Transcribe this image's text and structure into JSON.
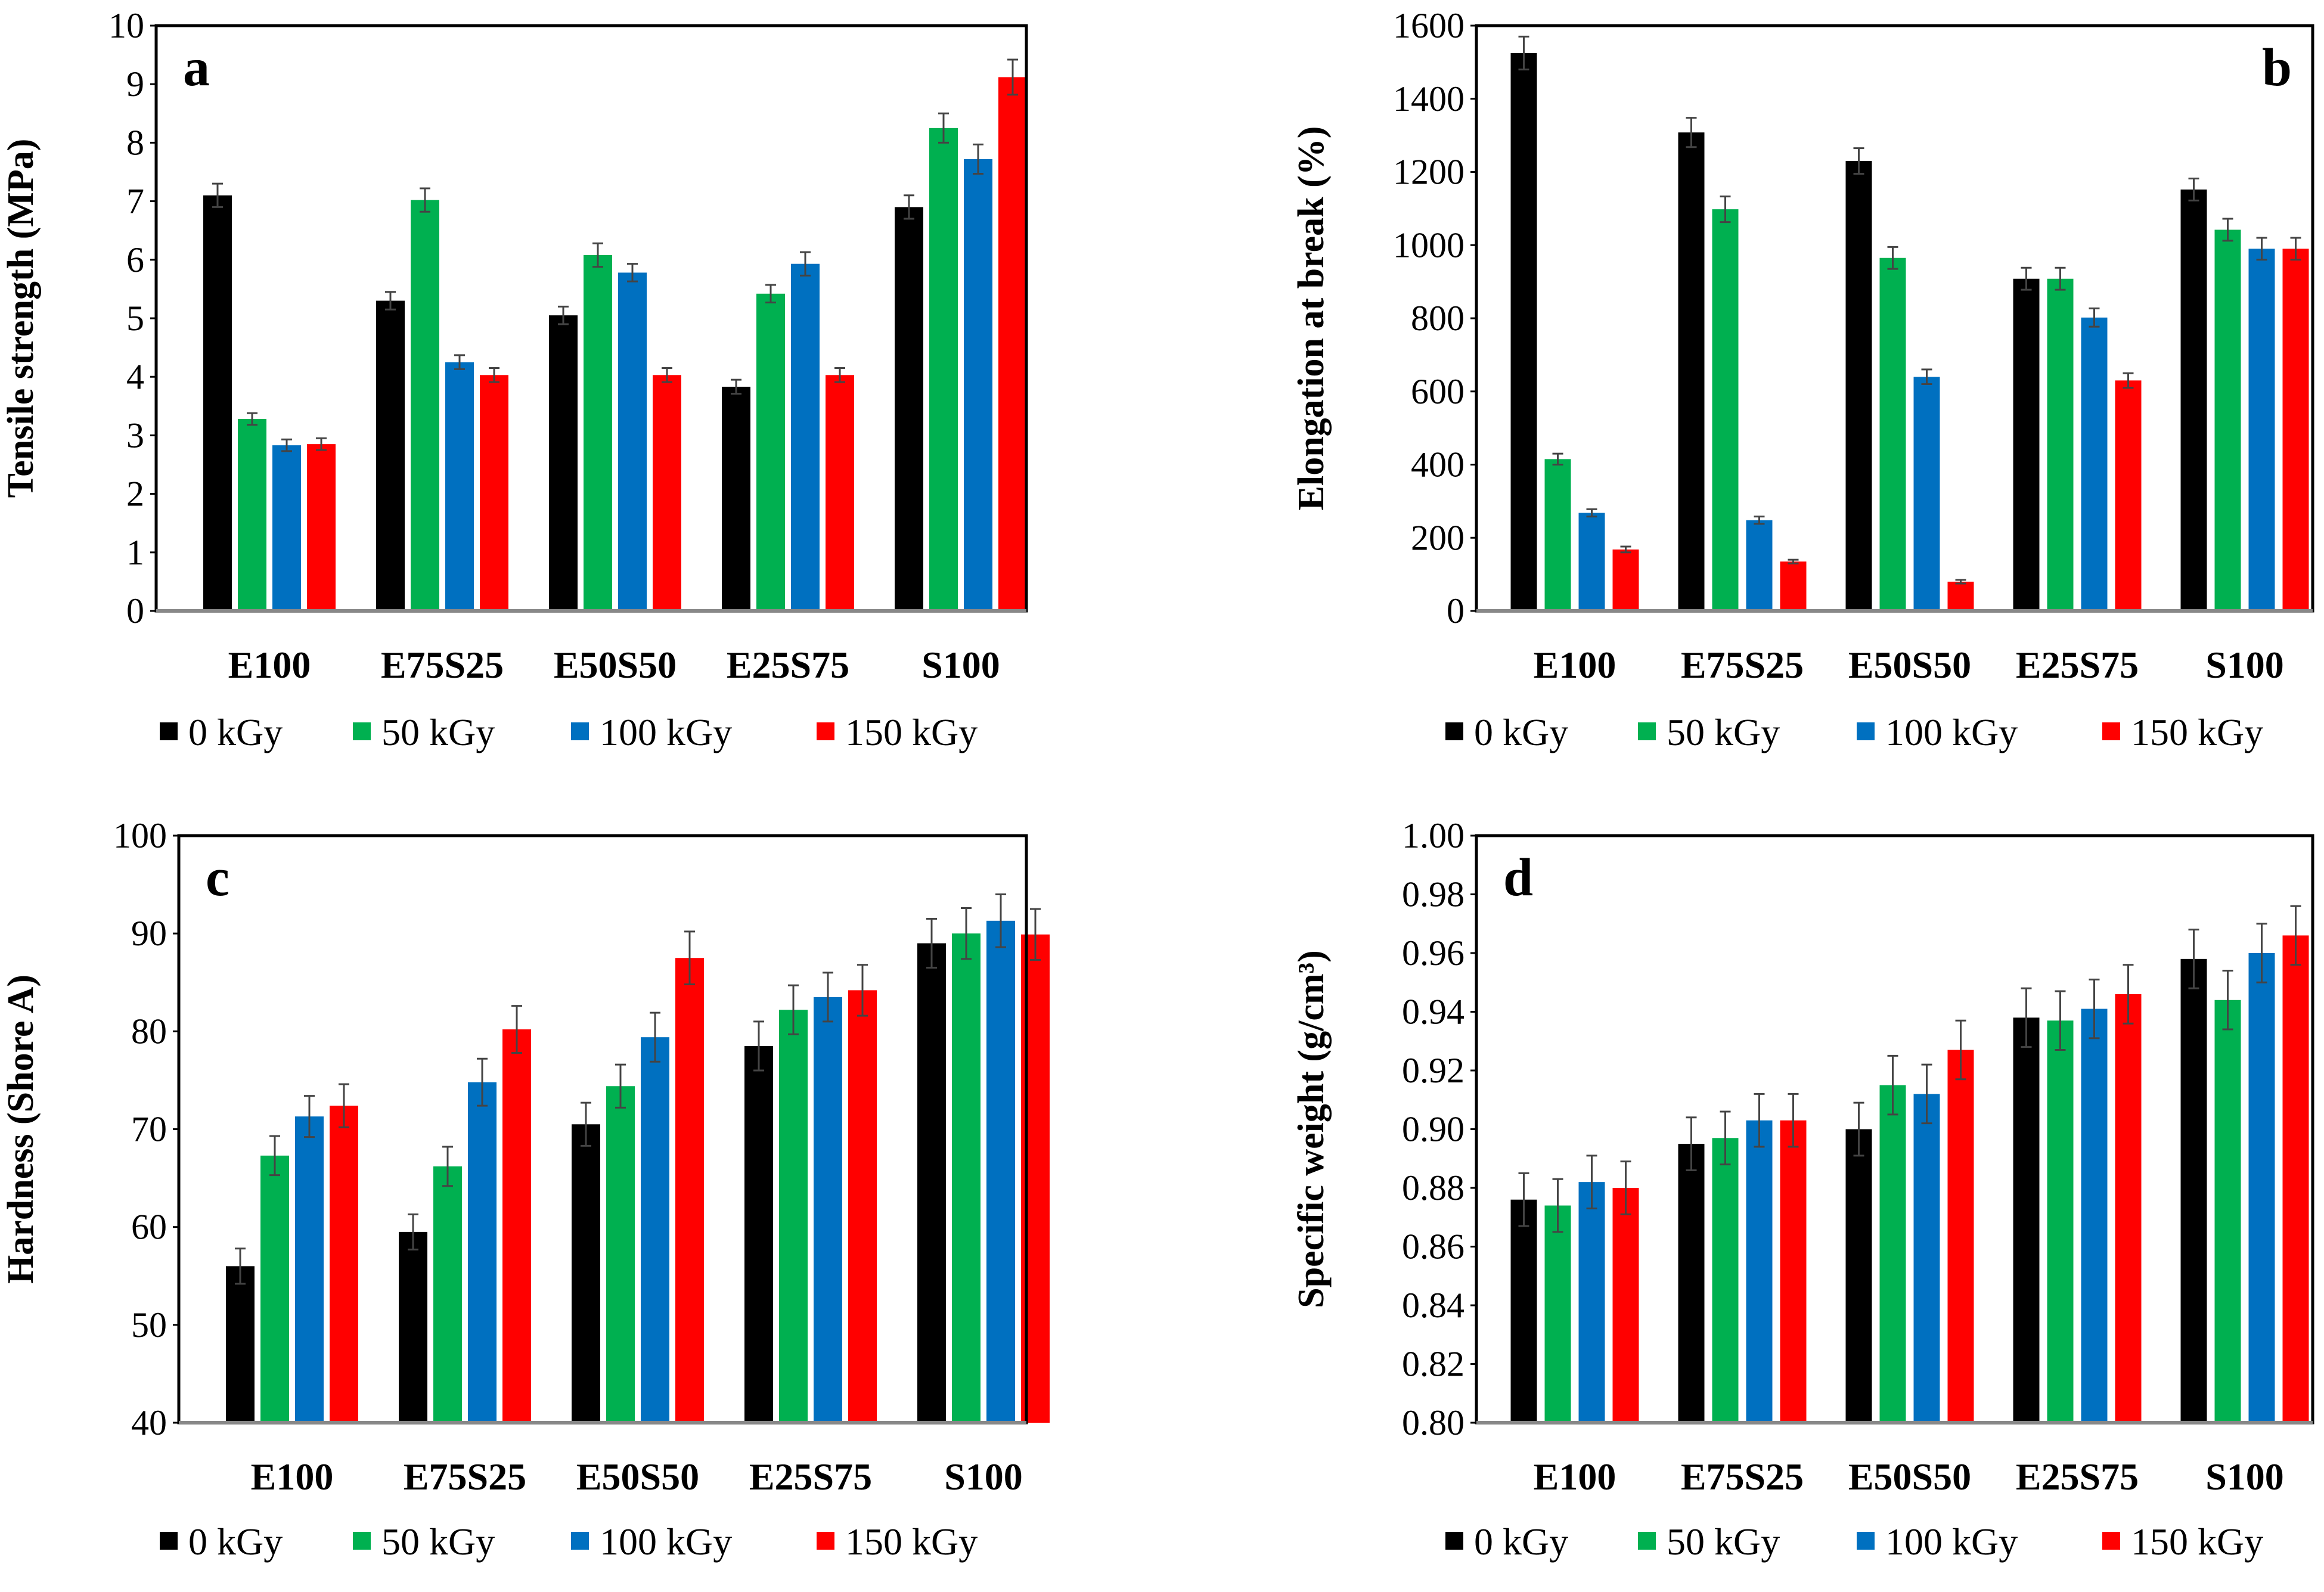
{
  "colors": {
    "0 kGy": "#000000",
    "50 kGy": "#00B050",
    "100 kGy": "#0070C0",
    "150 kGy": "#FF0000"
  },
  "chart_data": [
    {
      "type": "bar",
      "panel_label": "a",
      "ylabel": "Tensile strength (MPa)",
      "ylim": [
        0,
        10
      ],
      "yticks": [
        0,
        1,
        2,
        3,
        4,
        5,
        6,
        7,
        8,
        9,
        10
      ],
      "categories": [
        "E100",
        "E75S25",
        "E50S50",
        "E25S75",
        "S100"
      ],
      "series": [
        {
          "name": "0 kGy",
          "values": [
            7.1,
            5.3,
            5.05,
            3.83,
            6.9
          ],
          "errors": [
            0.2,
            0.15,
            0.15,
            0.12,
            0.2
          ]
        },
        {
          "name": "50 kGy",
          "values": [
            3.28,
            7.02,
            6.08,
            5.42,
            8.25
          ],
          "errors": [
            0.1,
            0.2,
            0.2,
            0.15,
            0.25
          ]
        },
        {
          "name": "100 kGy",
          "values": [
            2.83,
            4.25,
            5.78,
            5.93,
            7.72
          ],
          "errors": [
            0.1,
            0.12,
            0.15,
            0.2,
            0.25
          ]
        },
        {
          "name": "150 kGy",
          "values": [
            2.85,
            4.03,
            4.03,
            4.03,
            9.12
          ],
          "errors": [
            0.1,
            0.12,
            0.12,
            0.12,
            0.3
          ]
        }
      ]
    },
    {
      "type": "bar",
      "panel_label": "b",
      "ylabel": "Elongation at break (%)",
      "ylim": [
        0,
        1600
      ],
      "yticks": [
        0,
        200,
        400,
        600,
        800,
        1000,
        1200,
        1400,
        1600
      ],
      "categories": [
        "E100",
        "E75S25",
        "E50S50",
        "E25S75",
        "S100"
      ],
      "series": [
        {
          "name": "0 kGy",
          "values": [
            1525,
            1308,
            1230,
            908,
            1152
          ],
          "errors": [
            45,
            40,
            35,
            30,
            30
          ]
        },
        {
          "name": "50 kGy",
          "values": [
            415,
            1098,
            965,
            908,
            1042
          ],
          "errors": [
            15,
            35,
            30,
            30,
            30
          ]
        },
        {
          "name": "100 kGy",
          "values": [
            268,
            248,
            640,
            802,
            990
          ],
          "errors": [
            10,
            10,
            20,
            25,
            30
          ]
        },
        {
          "name": "150 kGy",
          "values": [
            168,
            135,
            80,
            630,
            990
          ],
          "errors": [
            8,
            5,
            5,
            20,
            30
          ]
        }
      ]
    },
    {
      "type": "bar",
      "panel_label": "c",
      "ylabel": "Hardness (Shore A)",
      "ylim": [
        40,
        100
      ],
      "yticks": [
        40,
        50,
        60,
        70,
        80,
        90,
        100
      ],
      "categories": [
        "E100",
        "E75S25",
        "E50S50",
        "E25S75",
        "S100"
      ],
      "series": [
        {
          "name": "0 kGy",
          "values": [
            56,
            59.5,
            70.5,
            78.5,
            89
          ],
          "errors": [
            1.8,
            1.8,
            2.2,
            2.5,
            2.5
          ]
        },
        {
          "name": "50 kGy",
          "values": [
            67.3,
            66.2,
            74.4,
            82.2,
            90
          ],
          "errors": [
            2,
            2,
            2.2,
            2.5,
            2.6
          ]
        },
        {
          "name": "100 kGy",
          "values": [
            71.3,
            74.8,
            79.4,
            83.5,
            91.3
          ],
          "errors": [
            2.1,
            2.4,
            2.5,
            2.5,
            2.7
          ]
        },
        {
          "name": "150 kGy",
          "values": [
            72.4,
            80.2,
            87.5,
            84.2,
            89.9
          ],
          "errors": [
            2.2,
            2.4,
            2.7,
            2.6,
            2.6
          ]
        }
      ]
    },
    {
      "type": "bar",
      "panel_label": "d",
      "ylabel": "Specific weight (g/cm³)",
      "ylim": [
        0.8,
        1.0
      ],
      "yticks": [
        "0.80",
        "0.82",
        "0.84",
        "0.86",
        "0.88",
        "0.90",
        "0.92",
        "0.94",
        "0.96",
        "0.98",
        "1.00"
      ],
      "categories": [
        "E100",
        "E75S25",
        "E50S50",
        "E25S75",
        "S100"
      ],
      "series": [
        {
          "name": "0 kGy",
          "values": [
            0.876,
            0.895,
            0.9,
            0.938,
            0.958
          ],
          "errors": [
            0.009,
            0.009,
            0.009,
            0.01,
            0.01
          ]
        },
        {
          "name": "50 kGy",
          "values": [
            0.874,
            0.897,
            0.915,
            0.937,
            0.944
          ],
          "errors": [
            0.009,
            0.009,
            0.01,
            0.01,
            0.01
          ]
        },
        {
          "name": "100 kGy",
          "values": [
            0.882,
            0.903,
            0.912,
            0.941,
            0.96
          ],
          "errors": [
            0.009,
            0.009,
            0.01,
            0.01,
            0.01
          ]
        },
        {
          "name": "150 kGy",
          "values": [
            0.88,
            0.903,
            0.927,
            0.946,
            0.966
          ],
          "errors": [
            0.009,
            0.009,
            0.01,
            0.01,
            0.01
          ]
        }
      ]
    }
  ]
}
